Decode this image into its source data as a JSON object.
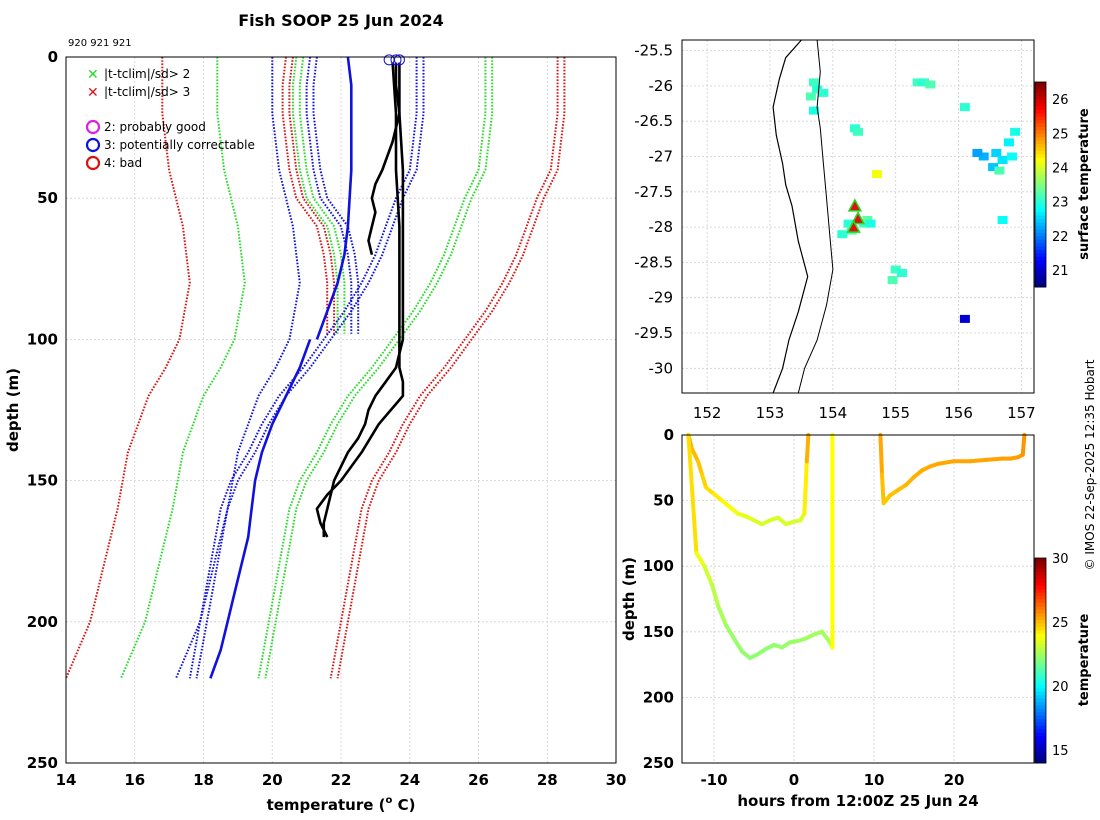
{
  "figure": {
    "title": "Fish SOOP 25 Jun 2024",
    "ids_label": "920 921 921",
    "credit": "© IMOS 22-Sep-2025 12:35 Hobart"
  },
  "colors": {
    "green": "#22dd22",
    "red": "#dd1111",
    "blue": "#1111dd",
    "magenta": "#dd22dd",
    "black": "#000000",
    "grid": "#d0d0d0"
  },
  "chart_data": [
    {
      "type": "line",
      "name": "profile",
      "xlabel": "temperature (",
      "xlabel_sup": "o",
      "xlabel_end": " C)",
      "ylabel": "depth (m)",
      "xlim": [
        14,
        30
      ],
      "ylim": [
        250,
        0
      ],
      "xticks": [
        14,
        16,
        18,
        20,
        22,
        24,
        26,
        28,
        30
      ],
      "yticks": [
        0,
        50,
        100,
        150,
        200,
        250
      ],
      "legend": [
        {
          "marker": "x",
          "color": "green",
          "label": "|t-tclim|/sd> 2"
        },
        {
          "marker": "x",
          "color": "red",
          "label": "|t-tclim|/sd> 3"
        },
        {
          "marker": "o",
          "color": "magenta",
          "label": "2: probably good"
        },
        {
          "marker": "o",
          "color": "blue",
          "label": "3: potentially correctable"
        },
        {
          "marker": "o",
          "color": "red",
          "label": "4: bad"
        }
      ],
      "series": [
        {
          "name": "climatology-shallow",
          "style": "dotted",
          "offsets": {
            "red": [
              -1.3,
              -1.1
            ],
            "green": [
              -1.0,
              -0.8
            ],
            "blue": [
              -0.6,
              -0.4
            ]
          },
          "depth": [
            0,
            10,
            20,
            30,
            40,
            50,
            55,
            60,
            70,
            80,
            90,
            98
          ],
          "mean": [
            21.7,
            21.6,
            21.6,
            21.7,
            21.8,
            22.0,
            22.3,
            22.6,
            22.8,
            22.9,
            22.9,
            22.9
          ]
        },
        {
          "name": "climatology-deep-lower",
          "style": "dotted",
          "offsets": {
            "red": [
              -5.0
            ],
            "green": [
              -3.4
            ],
            "blue": [
              -1.8
            ]
          },
          "depth": [
            0,
            20,
            40,
            60,
            80,
            100,
            110,
            120,
            140,
            160,
            180,
            200,
            220
          ],
          "mean": [
            21.8,
            21.8,
            22.0,
            22.4,
            22.6,
            22.3,
            21.9,
            21.4,
            20.8,
            20.5,
            20.1,
            19.7,
            19.0
          ]
        },
        {
          "name": "climatology-deep-upper",
          "style": "dotted",
          "offsets": {
            "red": [
              6.5,
              6.3
            ],
            "green": [
              4.4,
              4.2
            ],
            "blue": [
              2.4,
              2.2
            ]
          },
          "depth": [
            0,
            20,
            40,
            50,
            60,
            70,
            80,
            90,
            100,
            110,
            120,
            130,
            140,
            150,
            160,
            180,
            200,
            220
          ],
          "mean": [
            22.0,
            22.0,
            21.8,
            21.4,
            21.1,
            20.8,
            20.4,
            19.9,
            19.3,
            18.7,
            18.0,
            17.5,
            17.1,
            16.6,
            16.3,
            16.0,
            15.7,
            15.4
          ]
        },
        {
          "name": "climatology-mean-upper",
          "style": "solid",
          "color": "blue",
          "depth": [
            0,
            10,
            20,
            40,
            60,
            70,
            80,
            90,
            100
          ],
          "temp": [
            22.2,
            22.3,
            22.3,
            22.3,
            22.2,
            22.1,
            21.9,
            21.6,
            21.3
          ]
        },
        {
          "name": "climatology-mean-lower",
          "style": "solid",
          "color": "blue",
          "depth": [
            100,
            110,
            120,
            130,
            140,
            150,
            160,
            170,
            180,
            190,
            200,
            210,
            220
          ],
          "temp": [
            21.1,
            20.8,
            20.4,
            20.0,
            19.7,
            19.5,
            19.4,
            19.3,
            19.1,
            18.9,
            18.7,
            18.5,
            18.2
          ]
        },
        {
          "name": "xbt-drop-1",
          "style": "solid",
          "color": "black",
          "depth": [
            2,
            10,
            20,
            30,
            40,
            45,
            50,
            55,
            60,
            65,
            70
          ],
          "temp": [
            23.6,
            23.6,
            23.7,
            23.5,
            23.2,
            23.0,
            22.9,
            23.0,
            22.9,
            22.8,
            22.9
          ]
        },
        {
          "name": "xbt-drop-2",
          "style": "solid",
          "color": "black",
          "depth": [
            2,
            20,
            40,
            60,
            80,
            100,
            105,
            110,
            115,
            120,
            125,
            130,
            135,
            140,
            145,
            150,
            155,
            160,
            165,
            170
          ],
          "temp": [
            23.7,
            23.7,
            23.8,
            23.8,
            23.8,
            23.8,
            23.7,
            23.6,
            23.3,
            23.0,
            22.8,
            22.7,
            22.5,
            22.2,
            22.0,
            21.8,
            21.7,
            21.6,
            21.5,
            21.5
          ]
        },
        {
          "name": "xbt-drop-3",
          "style": "solid",
          "color": "black",
          "depth": [
            2,
            20,
            40,
            60,
            80,
            100,
            110,
            115,
            120,
            130,
            140,
            150,
            155,
            160,
            165,
            170
          ],
          "temp": [
            23.5,
            23.6,
            23.6,
            23.7,
            23.7,
            23.7,
            23.7,
            23.8,
            23.8,
            23.1,
            22.6,
            22.0,
            21.6,
            21.3,
            21.4,
            21.6
          ]
        }
      ],
      "surface_markers": [
        23.4,
        23.6,
        23.7
      ]
    },
    {
      "type": "heatmap",
      "name": "sst-map",
      "xlim": [
        151.6,
        157.2
      ],
      "ylim": [
        -30.35,
        -25.35
      ],
      "xticks": [
        152,
        153,
        154,
        155,
        156,
        157
      ],
      "yticks": [
        -25.5,
        -26,
        -26.5,
        -27,
        -27.5,
        -28,
        -28.5,
        -29,
        -29.5,
        -30
      ],
      "ytick_labels": [
        "-25.5",
        "-26",
        "-26.5",
        "-27",
        "-27.5",
        "-28",
        "-28.5",
        "-29",
        "-29.5",
        "-30"
      ],
      "colorbar_label": "surface temperature",
      "colorbar_range": [
        20.5,
        26.5
      ],
      "colorbar_ticks": [
        21,
        22,
        23,
        24,
        25,
        26
      ],
      "sst_patches": [
        {
          "lon": 153.7,
          "lat": -25.95,
          "t": 23.1
        },
        {
          "lon": 153.75,
          "lat": -26.05,
          "t": 23.0
        },
        {
          "lon": 153.65,
          "lat": -26.15,
          "t": 23.2
        },
        {
          "lon": 153.85,
          "lat": -26.1,
          "t": 23.0
        },
        {
          "lon": 153.7,
          "lat": -26.35,
          "t": 22.9
        },
        {
          "lon": 154.35,
          "lat": -26.6,
          "t": 23.0
        },
        {
          "lon": 154.4,
          "lat": -26.65,
          "t": 23.1
        },
        {
          "lon": 155.35,
          "lat": -25.95,
          "t": 23.1
        },
        {
          "lon": 155.45,
          "lat": -25.95,
          "t": 23.0
        },
        {
          "lon": 155.55,
          "lat": -25.98,
          "t": 23.2
        },
        {
          "lon": 156.1,
          "lat": -26.3,
          "t": 23.0
        },
        {
          "lon": 156.9,
          "lat": -26.65,
          "t": 22.9
        },
        {
          "lon": 156.8,
          "lat": -26.8,
          "t": 22.7
        },
        {
          "lon": 156.6,
          "lat": -26.95,
          "t": 22.5
        },
        {
          "lon": 156.4,
          "lat": -27.0,
          "t": 22.3
        },
        {
          "lon": 156.3,
          "lat": -26.95,
          "t": 22.2
        },
        {
          "lon": 156.7,
          "lat": -27.05,
          "t": 22.6
        },
        {
          "lon": 156.85,
          "lat": -27.0,
          "t": 22.8
        },
        {
          "lon": 156.55,
          "lat": -27.15,
          "t": 22.4
        },
        {
          "lon": 156.65,
          "lat": -27.2,
          "t": 23.2
        },
        {
          "lon": 154.7,
          "lat": -27.25,
          "t": 24.2
        },
        {
          "lon": 154.25,
          "lat": -27.95,
          "t": 23.0
        },
        {
          "lon": 154.3,
          "lat": -28.05,
          "t": 23.2
        },
        {
          "lon": 154.5,
          "lat": -27.95,
          "t": 23.1
        },
        {
          "lon": 154.55,
          "lat": -27.9,
          "t": 23.3
        },
        {
          "lon": 154.6,
          "lat": -27.95,
          "t": 22.9
        },
        {
          "lon": 154.15,
          "lat": -28.1,
          "t": 23.0
        },
        {
          "lon": 155.0,
          "lat": -28.6,
          "t": 23.1
        },
        {
          "lon": 155.1,
          "lat": -28.65,
          "t": 23.0
        },
        {
          "lon": 154.95,
          "lat": -28.75,
          "t": 23.2
        },
        {
          "lon": 156.1,
          "lat": -29.3,
          "t": 21.0
        },
        {
          "lon": 156.7,
          "lat": -27.9,
          "t": 22.8
        }
      ],
      "coast": [
        [
          153.5,
          -25.35
        ],
        [
          153.25,
          -25.6
        ],
        [
          153.15,
          -25.9
        ],
        [
          153.05,
          -26.3
        ],
        [
          153.1,
          -26.7
        ],
        [
          153.2,
          -27.1
        ],
        [
          153.25,
          -27.4
        ],
        [
          153.35,
          -27.7
        ],
        [
          153.45,
          -28.2
        ],
        [
          153.6,
          -28.7
        ],
        [
          153.45,
          -29.2
        ],
        [
          153.3,
          -29.6
        ],
        [
          153.2,
          -30.0
        ],
        [
          153.05,
          -30.35
        ]
      ],
      "isobath": [
        [
          153.75,
          -25.35
        ],
        [
          153.8,
          -25.8
        ],
        [
          153.75,
          -26.3
        ],
        [
          153.8,
          -26.6
        ],
        [
          153.85,
          -27.1
        ],
        [
          153.9,
          -27.6
        ],
        [
          153.95,
          -28.1
        ],
        [
          154.0,
          -28.6
        ],
        [
          153.9,
          -29.1
        ],
        [
          153.75,
          -29.6
        ],
        [
          153.55,
          -30.0
        ],
        [
          153.45,
          -30.35
        ]
      ],
      "drop_locations": [
        {
          "lon": 154.35,
          "lat": -27.7
        },
        {
          "lon": 154.4,
          "lat": -27.88
        },
        {
          "lon": 154.33,
          "lat": -28.0
        }
      ]
    },
    {
      "type": "scatter",
      "name": "time-depth",
      "xlabel": "hours from 12:00Z 25 Jun 24",
      "ylabel": "depth (m)",
      "xlim": [
        -14,
        30
      ],
      "ylim": [
        250,
        0
      ],
      "xticks": [
        -10,
        0,
        10,
        20
      ],
      "yticks": [
        0,
        50,
        100,
        150,
        200,
        250
      ],
      "colorbar_label": "temperature",
      "colorbar_range": [
        14,
        30
      ],
      "colorbar_ticks": [
        15,
        20,
        25,
        30
      ],
      "tracks": [
        {
          "hours": [
            -13.2,
            -12.8,
            -12.0,
            -11.5,
            -11.0,
            -10.0,
            -9.0,
            -8.0,
            -7.0,
            -6.0,
            -5.0,
            -4.0,
            -3.0,
            -2.0,
            -1.0,
            0.0,
            0.8,
            1.3,
            1.6,
            1.8
          ],
          "depth": [
            0,
            10,
            20,
            30,
            40,
            45,
            50,
            55,
            60,
            62,
            65,
            68,
            65,
            63,
            68,
            66,
            65,
            60,
            20,
            0
          ],
          "temp": [
            25.5,
            25.2,
            25.0,
            24.8,
            24.6,
            24.4,
            24.2,
            24.0,
            23.8,
            23.6,
            23.5,
            23.4,
            23.3,
            23.4,
            23.3,
            23.4,
            23.3,
            23.5,
            25.0,
            25.5
          ]
        },
        {
          "hours": [
            -13.2,
            -12.2,
            -11.2,
            -10.2,
            -9.5,
            -8.5,
            -7.5,
            -6.5,
            -5.5,
            -4.5,
            -3.5,
            -2.5,
            -1.5,
            -0.5,
            0.5,
            1.5,
            2.5,
            3.5,
            4.5,
            4.8,
            4.8
          ],
          "depth": [
            0,
            90,
            100,
            115,
            130,
            145,
            155,
            165,
            170,
            167,
            163,
            160,
            162,
            158,
            157,
            155,
            152,
            150,
            158,
            162,
            0
          ],
          "temp": [
            25.0,
            24.0,
            23.5,
            23.0,
            22.8,
            22.5,
            22.4,
            22.3,
            22.2,
            22.3,
            22.2,
            22.3,
            22.3,
            22.4,
            22.4,
            22.5,
            22.5,
            22.6,
            22.5,
            23.0,
            25.0
          ]
        },
        {
          "hours": [
            10.8,
            11.0,
            11.2,
            11.5,
            12.0,
            13.0,
            14.0,
            15.0,
            16.0,
            17.0,
            18.0,
            20.0,
            22.0,
            24.0,
            26.0,
            27.0,
            28.0,
            28.6,
            28.8
          ],
          "depth": [
            0,
            30,
            52,
            50,
            46,
            42,
            38,
            32,
            27,
            24,
            22,
            20,
            20,
            19,
            18,
            18,
            17,
            15,
            0
          ],
          "temp": [
            25.5,
            25.2,
            24.8,
            24.8,
            24.9,
            25.0,
            25.1,
            25.2,
            25.3,
            25.3,
            25.4,
            25.4,
            25.4,
            25.4,
            25.5,
            25.5,
            25.5,
            25.6,
            25.8
          ]
        }
      ]
    }
  ]
}
